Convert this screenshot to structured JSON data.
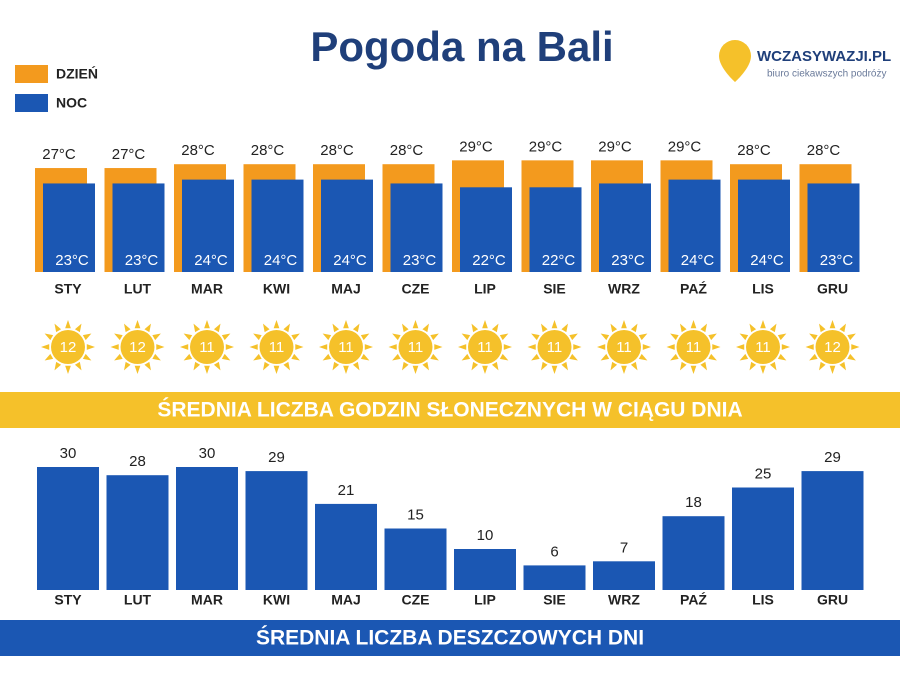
{
  "header": {
    "title": "Pogoda na Bali",
    "logo": "WCZASYWAZJI.PL",
    "tagline": "biuro ciekawszych podróży"
  },
  "chart_data": [
    {
      "type": "overlap-bar",
      "categories": [
        "STY",
        "LUT",
        "MAR",
        "KWI",
        "MAJ",
        "CZE",
        "LIP",
        "SIE",
        "WRZ",
        "PAŹ",
        "LIS",
        "GRU"
      ],
      "series": [
        {
          "name": "DZIEŃ",
          "color": "#f39a1e",
          "values": [
            27,
            27,
            28,
            28,
            28,
            28,
            29,
            29,
            29,
            29,
            28,
            28
          ],
          "value_labels": [
            "27°C",
            "27°C",
            "28°C",
            "28°C",
            "28°C",
            "28°C",
            "29°C",
            "29°C",
            "29°C",
            "29°C",
            "28°C",
            "28°C"
          ]
        },
        {
          "name": "NOC",
          "color": "#1b57b3",
          "values": [
            23,
            23,
            24,
            24,
            24,
            23,
            22,
            22,
            23,
            24,
            24,
            23
          ],
          "value_labels": [
            "23°C",
            "23°C",
            "24°C",
            "24°C",
            "24°C",
            "23°C",
            "22°C",
            "22°C",
            "23°C",
            "24°C",
            "24°C",
            "23°C"
          ]
        }
      ],
      "legend": "top-left"
    },
    {
      "type": "icon",
      "title": "ŚREDNIA LICZBA GODZIN SŁONECZNYCH W CIĄGU DNIA",
      "color": "#f5c12a",
      "values": [
        12,
        12,
        11,
        11,
        11,
        11,
        11,
        11,
        11,
        11,
        11,
        12
      ]
    },
    {
      "type": "bar",
      "title": "ŚREDNIA LICZBA DESZCZOWYCH DNI",
      "color": "#1b57b3",
      "categories": [
        "STY",
        "LUT",
        "MAR",
        "KWI",
        "MAJ",
        "CZE",
        "LIP",
        "SIE",
        "WRZ",
        "PAŹ",
        "LIS",
        "GRU"
      ],
      "values": [
        30,
        28,
        30,
        29,
        21,
        15,
        10,
        6,
        7,
        18,
        25,
        29
      ]
    }
  ]
}
